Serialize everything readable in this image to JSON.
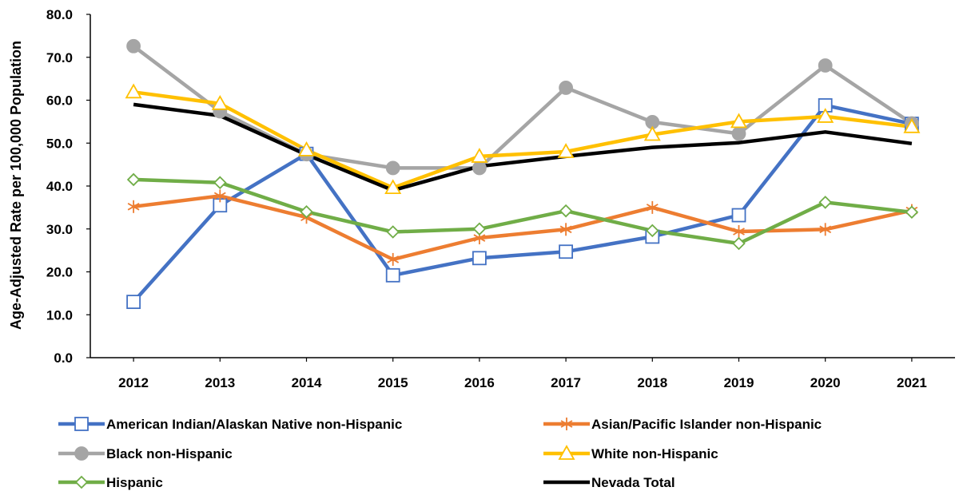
{
  "chart_data": {
    "type": "line",
    "title": "",
    "xlabel": "",
    "ylabel": "Age-Adjusted Rate per 100,000 Population",
    "ylim": [
      0,
      80
    ],
    "yticks": [
      "0.0",
      "10.0",
      "20.0",
      "30.0",
      "40.0",
      "50.0",
      "60.0",
      "70.0",
      "80.0"
    ],
    "x": [
      "2012",
      "2013",
      "2014",
      "2015",
      "2016",
      "2017",
      "2018",
      "2019",
      "2020",
      "2021"
    ],
    "grid": false,
    "legend_position": "bottom",
    "series": [
      {
        "name": "American Indian/Alaskan Native non-Hispanic",
        "color": "#4472C4",
        "marker": "square",
        "values": [
          13.0,
          35.5,
          47.5,
          19.2,
          23.2,
          24.7,
          28.2,
          33.2,
          58.8,
          54.5
        ]
      },
      {
        "name": "Asian/Pacific Islander non-Hispanic",
        "color": "#ED7D31",
        "marker": "star",
        "values": [
          35.2,
          37.7,
          32.7,
          22.9,
          27.9,
          29.9,
          35.0,
          29.4,
          29.9,
          34.3
        ]
      },
      {
        "name": "Black non-Hispanic",
        "color": "#A5A5A5",
        "marker": "circle",
        "values": [
          72.6,
          57.4,
          47.4,
          44.2,
          44.2,
          62.9,
          54.9,
          52.2,
          68.1,
          54.6
        ]
      },
      {
        "name": "White non-Hispanic",
        "color": "#FFC000",
        "marker": "triangle",
        "values": [
          61.9,
          59.2,
          48.4,
          39.6,
          46.9,
          48.0,
          52.0,
          55.0,
          56.2,
          53.8
        ]
      },
      {
        "name": "Hispanic",
        "color": "#70AD47",
        "marker": "diamond",
        "values": [
          41.5,
          40.8,
          34.0,
          29.3,
          30.0,
          34.2,
          29.6,
          26.6,
          36.2,
          33.9
        ]
      },
      {
        "name": "Nevada Total",
        "color": "#000000",
        "marker": "none",
        "values": [
          59.0,
          56.4,
          47.3,
          39.0,
          44.6,
          46.9,
          49.0,
          50.1,
          52.6,
          49.9
        ]
      }
    ]
  }
}
